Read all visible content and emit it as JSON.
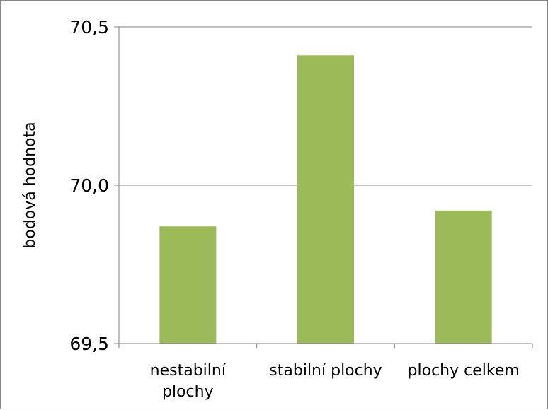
{
  "chart_data": {
    "type": "bar",
    "categories": [
      [
        "nestabilní",
        "plochy"
      ],
      [
        "stabilní plochy"
      ],
      [
        "plochy celkem"
      ]
    ],
    "values": [
      69.87,
      70.41,
      69.92
    ],
    "ylabel": "bodová hodnota",
    "ylim": [
      69.5,
      70.5
    ],
    "yticks": [
      "70,5",
      "70,0",
      "69,5"
    ],
    "ytick_values": [
      70.5,
      70.0,
      69.5
    ],
    "grid": true,
    "bar_color": "#9bbb59",
    "gridline_color": "#868686"
  }
}
